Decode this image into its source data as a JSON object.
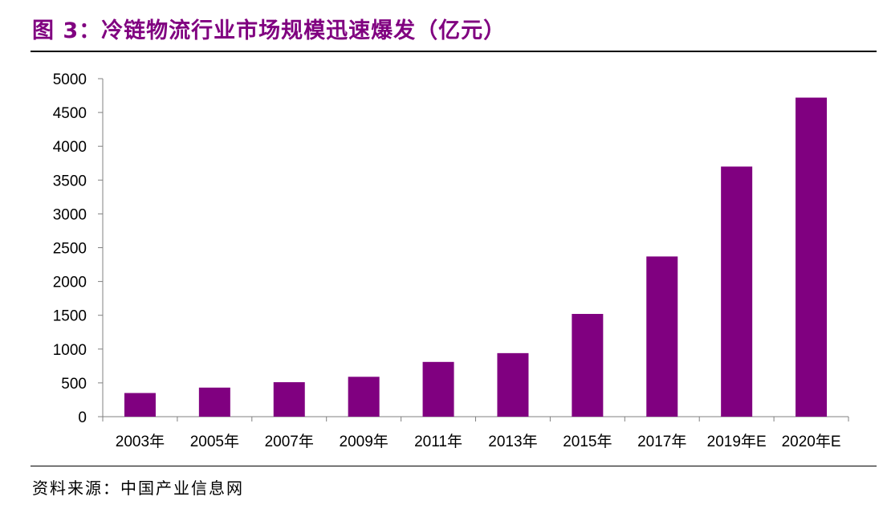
{
  "figure": {
    "title": "图 3：冷链物流行业市场规模迅速爆发（亿元）",
    "source": "资料来源：中国产业信息网"
  },
  "colors": {
    "bar": "#800080",
    "title": "#800080",
    "axis": "#808080"
  },
  "chart_data": {
    "type": "bar",
    "title": "图 3：冷链物流行业市场规模迅速爆发（亿元）",
    "categories": [
      "2003年",
      "2005年",
      "2007年",
      "2009年",
      "2011年",
      "2013年",
      "2015年",
      "2017年",
      "2019年E",
      "2020年E"
    ],
    "values": [
      350,
      430,
      510,
      590,
      810,
      940,
      1520,
      2370,
      3700,
      4720
    ],
    "xlabel": "",
    "ylabel": "",
    "ylim": [
      0,
      5000
    ],
    "yticks": [
      0,
      500,
      1000,
      1500,
      2000,
      2500,
      3000,
      3500,
      4000,
      4500,
      5000
    ],
    "grid": false,
    "legend": "none"
  }
}
